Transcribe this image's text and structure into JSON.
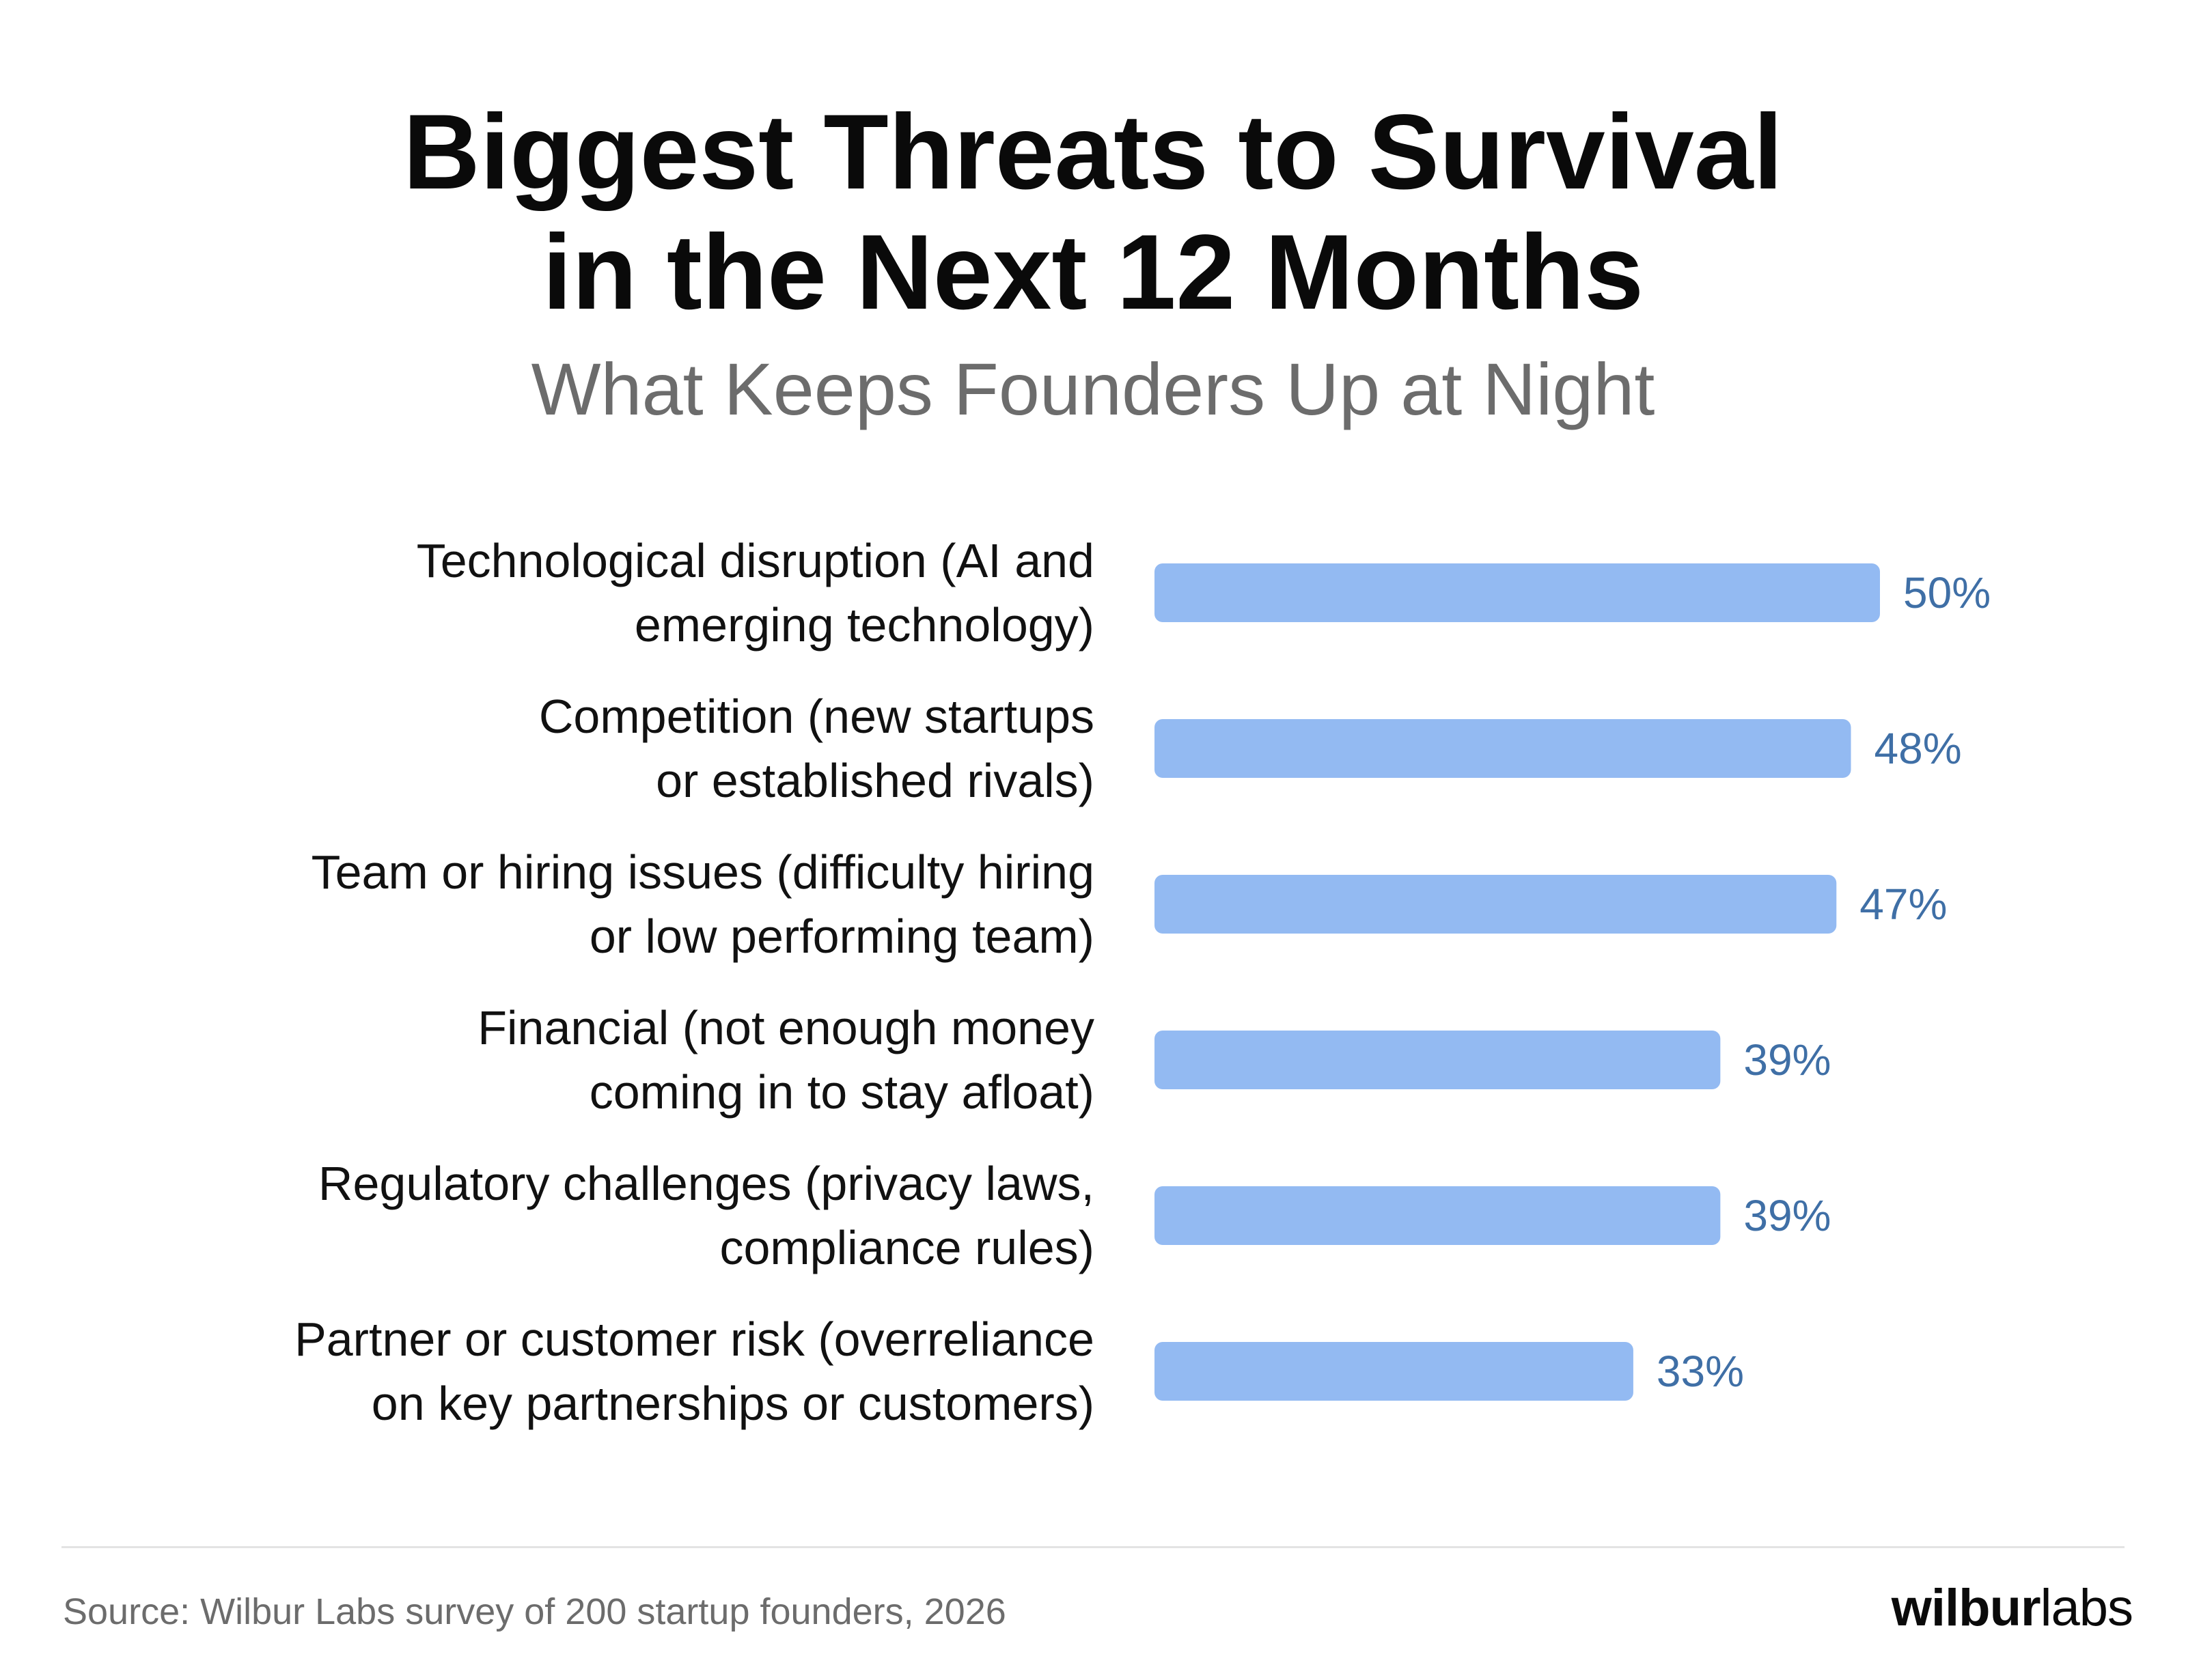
{
  "chart_data": {
    "type": "bar",
    "orientation": "horizontal",
    "title_lines": [
      "Biggest Threats to Survival",
      "in the Next 12 Months"
    ],
    "subtitle": "What Keeps Founders Up at Night",
    "categories": [
      [
        "Technological disruption (AI and",
        "emerging technology)"
      ],
      [
        "Competition (new startups",
        "or established rivals)"
      ],
      [
        "Team or hiring issues (difficulty hiring",
        "or low performing team)"
      ],
      [
        "Financial (not enough money",
        "coming in to stay afloat)"
      ],
      [
        "Regulatory challenges (privacy laws,",
        "compliance rules)"
      ],
      [
        "Partner or customer risk (overreliance",
        "on key partnerships or customers)"
      ]
    ],
    "values": [
      50,
      48,
      47,
      39,
      39,
      33
    ],
    "value_labels": [
      "50%",
      "48%",
      "47%",
      "39%",
      "39%",
      "33%"
    ],
    "unit": "%",
    "xlim": [
      0,
      50
    ],
    "grid": false,
    "legend": "none",
    "bar_color": "#93baf2",
    "value_label_color": "#3f6fa6",
    "source": "Source: Wilbur Labs survey of 200 startup founders, 2026"
  },
  "brand": {
    "logo_bold": "wilbur",
    "logo_light": "labs"
  }
}
